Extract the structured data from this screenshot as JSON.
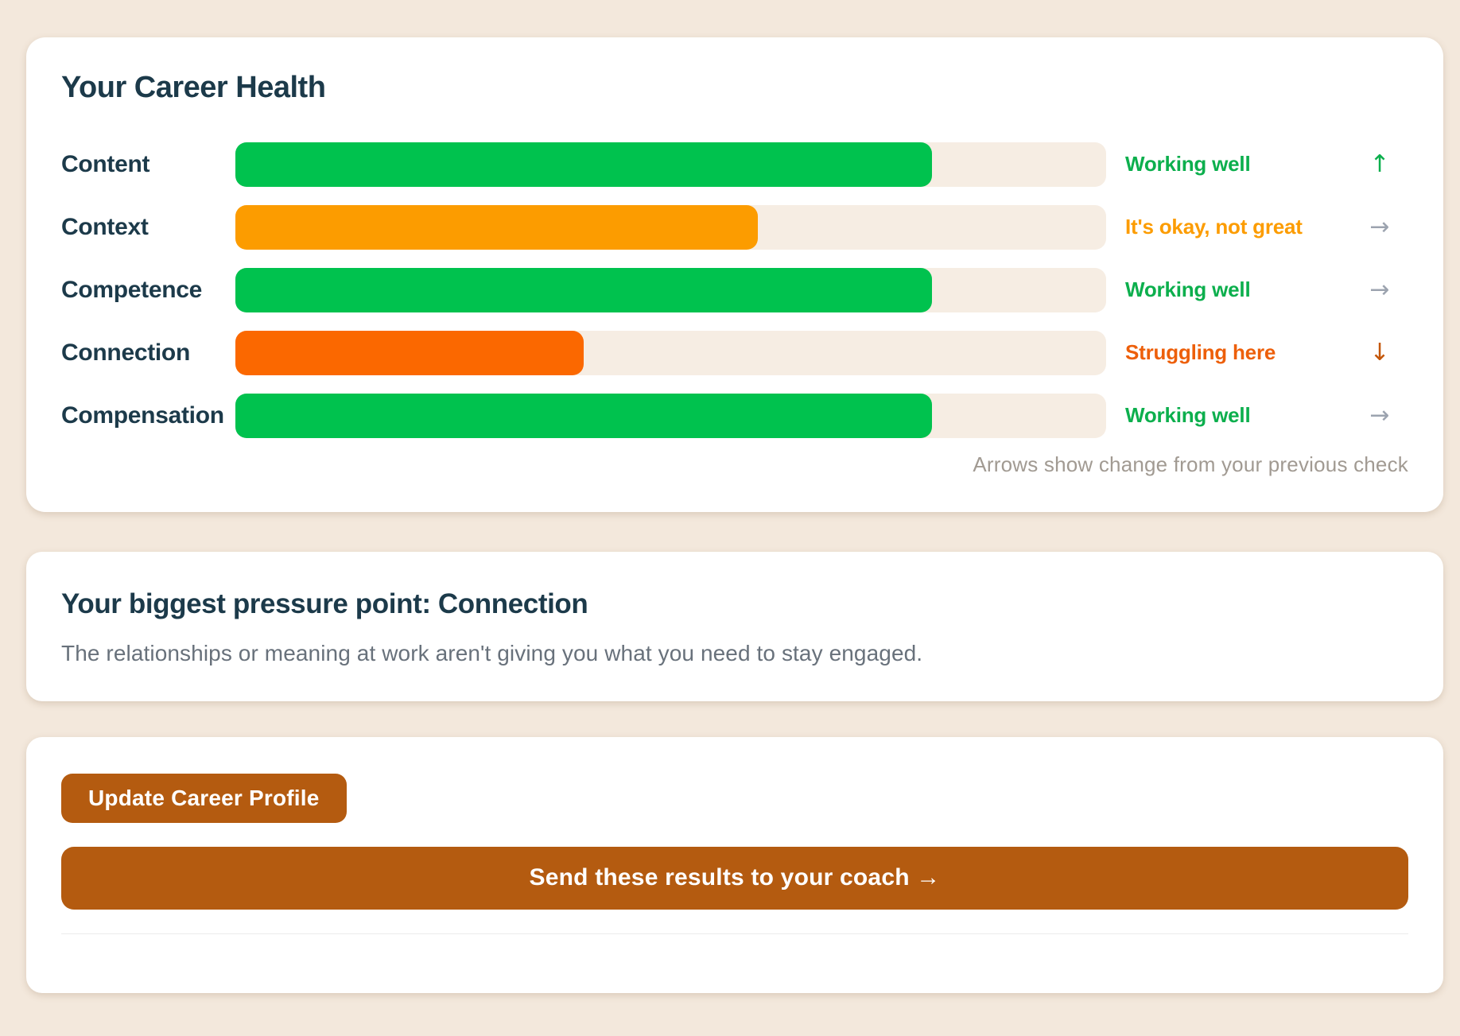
{
  "page": {
    "background": "#f3e8dc"
  },
  "career_health": {
    "title": "Your Career Health",
    "note": "Arrows show change from your previous check",
    "track_color": "#f6ede3",
    "rows": [
      {
        "label": "Content",
        "value": 80,
        "bar_color": "#00c24e",
        "status": "Working well",
        "status_color": "#0caf4d",
        "trend": "up",
        "trend_symbol": "↑",
        "trend_color": "#0caf4d"
      },
      {
        "label": "Context",
        "value": 60,
        "bar_color": "#fc9c00",
        "status": "It's okay, not great",
        "status_color": "#fc9c00",
        "trend": "flat",
        "trend_symbol": "→",
        "trend_color": "#9ca3af"
      },
      {
        "label": "Competence",
        "value": 80,
        "bar_color": "#00c24e",
        "status": "Working well",
        "status_color": "#0caf4d",
        "trend": "flat",
        "trend_symbol": "→",
        "trend_color": "#9ca3af"
      },
      {
        "label": "Connection",
        "value": 40,
        "bar_color": "#fb6800",
        "status": "Struggling here",
        "status_color": "#ed5f0a",
        "trend": "down",
        "trend_symbol": "↓",
        "trend_color": "#c4570a"
      },
      {
        "label": "Compensation",
        "value": 80,
        "bar_color": "#00c24e",
        "status": "Working well",
        "status_color": "#0caf4d",
        "trend": "flat",
        "trend_symbol": "→",
        "trend_color": "#9ca3af"
      }
    ]
  },
  "pressure_point": {
    "title": "Your biggest pressure point: Connection",
    "description": "The relationships or meaning at work aren't giving you what you need to stay engaged."
  },
  "actions": {
    "button_color": "#b45b10",
    "update_label": "Update Career Profile",
    "send_label": "Send these results to your coach →"
  }
}
